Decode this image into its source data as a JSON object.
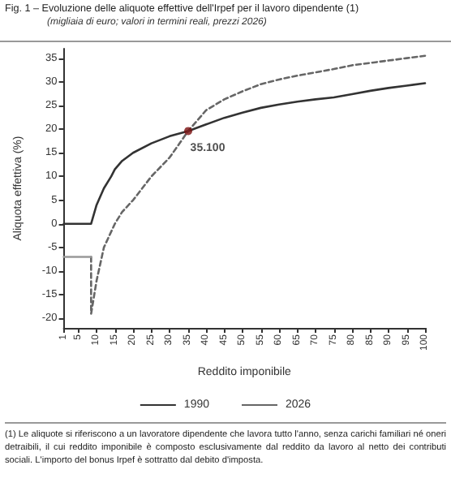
{
  "chart_data": {
    "type": "line",
    "title": "Fig. 1 – Evoluzione delle aliquote effettive dell'Irpef per il lavoro dipendente (1)",
    "subtitle": "(migliaia di euro; valori in termini reali, prezzi 2026)",
    "xlabel": "Reddito imponibile",
    "ylabel": "Aliquota effettiva (%)",
    "annotations": [
      {
        "text": "35.100",
        "x": 35.1,
        "y": 19.6
      },
      "(1) Le aliquote si riferiscono a un lavoratore dipendente che lavora tutto l'anno, senza carichi familiari né oneri detraibili, il cui reddito imponibile è composto esclusivamente dal reddito da lavoro al netto dei contributi sociali. L'importo del bonus Irpef è sottratto dal debito d'imposta."
    ],
    "xlim": [
      1,
      100
    ],
    "xticks": [
      1,
      5,
      10,
      15,
      20,
      25,
      30,
      35,
      40,
      45,
      50,
      55,
      60,
      65,
      70,
      75,
      80,
      85,
      90,
      95,
      100
    ],
    "ylim": [
      -22,
      37
    ],
    "yticks": [
      -20,
      -15,
      -10,
      -5,
      0,
      5,
      10,
      15,
      20,
      25,
      30,
      35
    ],
    "grid": false,
    "legend": "bottom",
    "marker": "none",
    "series": [
      {
        "name": "1990",
        "color": "#333333",
        "line_style": "solid",
        "x": [
          1,
          8.5,
          10,
          12,
          14,
          15,
          17,
          20,
          25,
          30,
          35.1,
          40,
          45,
          50,
          55,
          60,
          65,
          70,
          75,
          80,
          85,
          90,
          95,
          100
        ],
        "values": [
          0,
          0,
          4,
          7.5,
          10,
          11.5,
          13.3,
          15,
          17,
          18.5,
          19.6,
          21,
          22.4,
          23.5,
          24.5,
          25.2,
          25.8,
          26.3,
          26.7,
          27.4,
          28.1,
          28.7,
          29.2,
          29.7
        ]
      },
      {
        "name": "2026",
        "color": "#666666",
        "line_style": "dashed",
        "x": [
          8.5,
          8.5,
          10,
          12,
          15,
          17,
          20,
          25,
          30,
          35.1,
          40,
          45,
          50,
          55,
          60,
          65,
          70,
          75,
          80,
          85,
          90,
          95,
          100
        ],
        "values": [
          -7,
          -19,
          -12,
          -5,
          0,
          2.5,
          5,
          10,
          14,
          19.6,
          24,
          26.3,
          28,
          29.5,
          30.5,
          31.3,
          32,
          32.7,
          33.5,
          34,
          34.5,
          35,
          35.5
        ]
      },
      {
        "color": "#999999",
        "line_style": "solid",
        "x": [
          1,
          8.5
        ],
        "values": [
          -7,
          -7
        ]
      }
    ]
  }
}
